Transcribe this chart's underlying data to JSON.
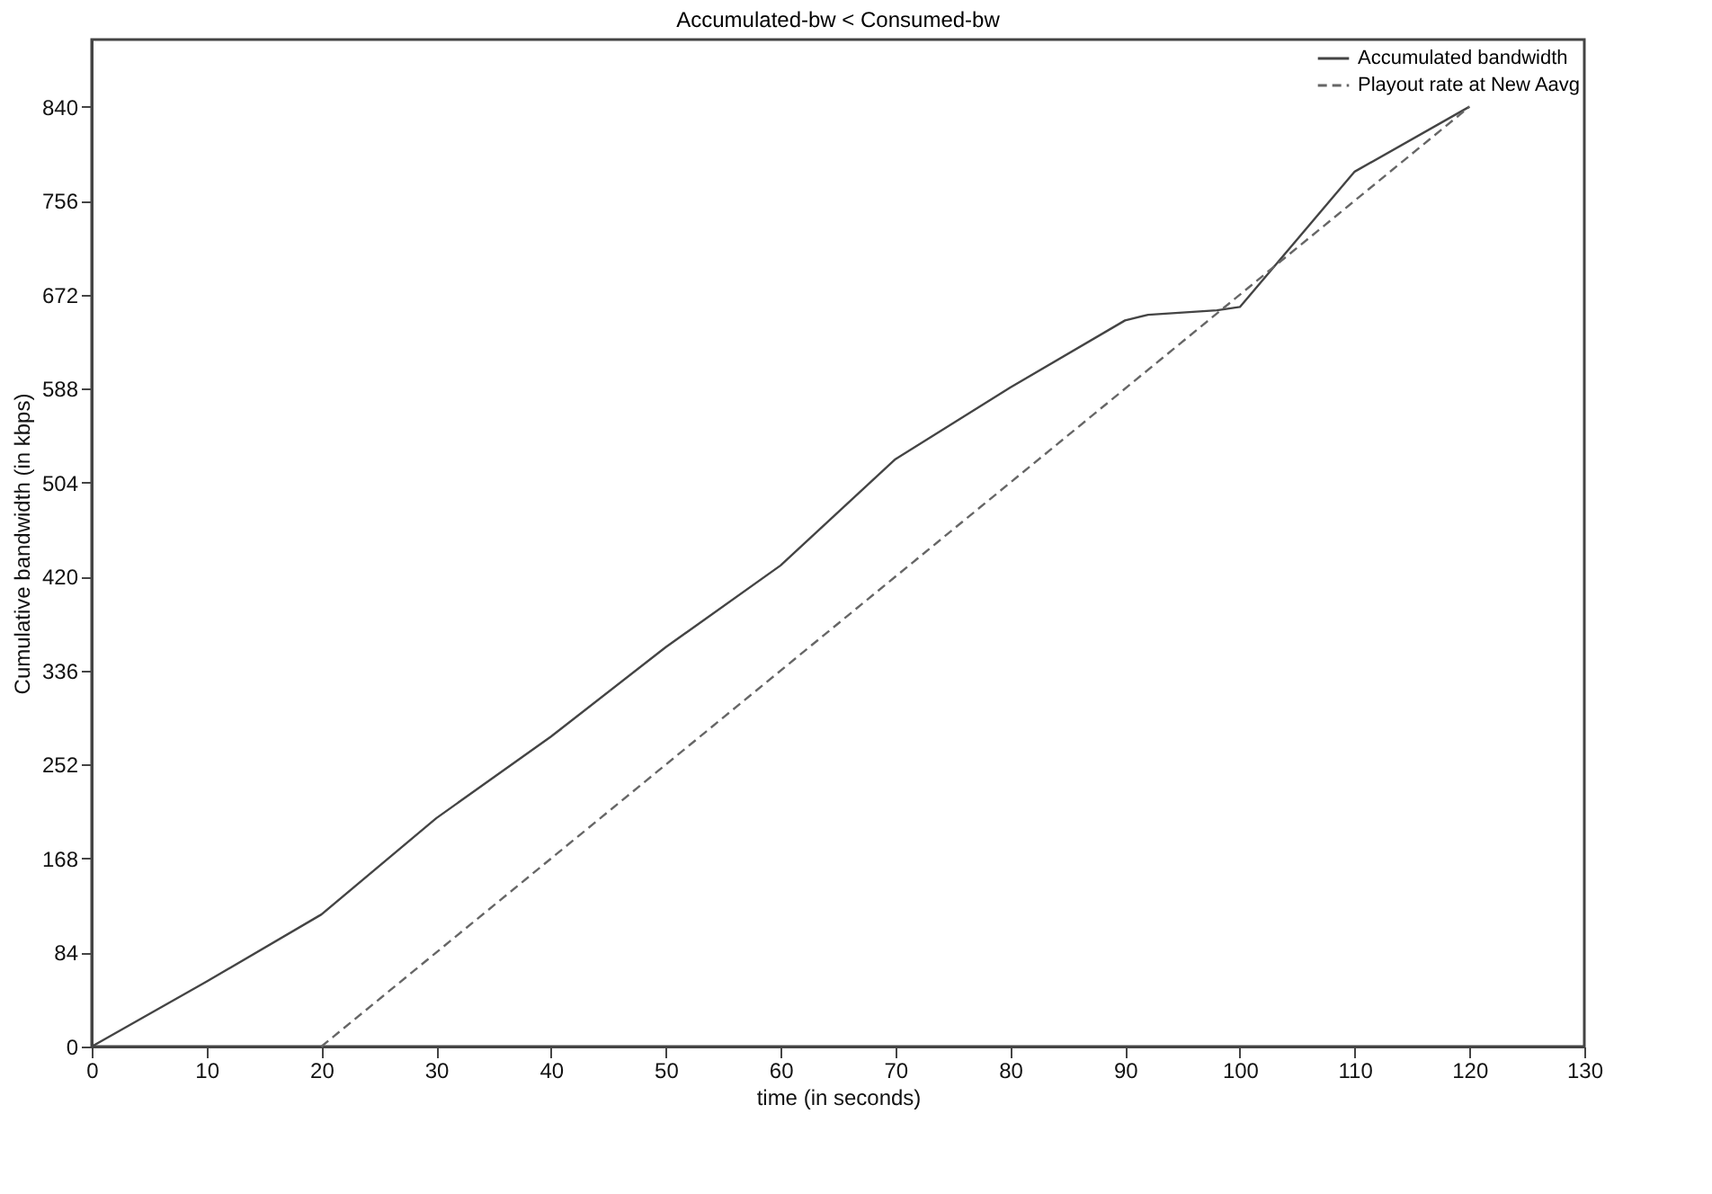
{
  "chart_data": {
    "type": "line",
    "title": "Accumulated-bw < Consumed-bw",
    "xlabel": "time (in seconds)",
    "ylabel": "Cumulative bandwidth (in kbps)",
    "xlim": [
      0,
      130
    ],
    "xticks": [
      0,
      10,
      20,
      30,
      40,
      50,
      60,
      70,
      80,
      90,
      100,
      110,
      120,
      130
    ],
    "ylim": [
      0,
      900
    ],
    "yticks": [
      0,
      84,
      168,
      252,
      336,
      420,
      504,
      588,
      672,
      756,
      840
    ],
    "grid": false,
    "legend": "top right",
    "series": [
      {
        "name": "Accumulated bandwidth",
        "color": "#444444",
        "line_style": "solid",
        "x": [
          0,
          10,
          20,
          30,
          40,
          50,
          60,
          70,
          80,
          90,
          92,
          98,
          100,
          110,
          120
        ],
        "values": [
          0,
          58,
          118,
          204,
          277,
          357,
          430,
          525,
          589,
          649,
          654,
          658,
          661,
          782,
          840
        ]
      },
      {
        "name": "Playout rate at New Aavg",
        "color": "#666666",
        "line_style": "dashed",
        "x": [
          20,
          120
        ],
        "values": [
          0,
          840
        ]
      }
    ]
  }
}
